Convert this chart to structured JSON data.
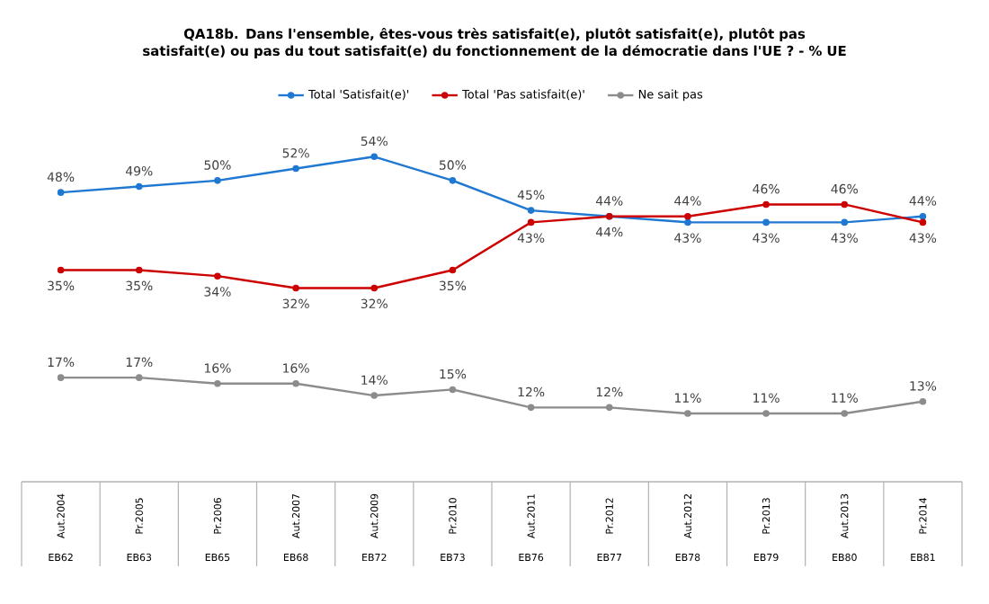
{
  "chart_data": {
    "type": "line",
    "title": "QA18b. Dans l'ensemble, êtes-vous très satisfait(e), plutôt satisfait(e), plutôt pas satisfait(e) ou pas du tout satisfait(e) du fonctionnement de la démocratie dans l'UE ? - % UE",
    "categories": [
      "Aut.2004",
      "Pr.2005",
      "Pr.2006",
      "Aut.2007",
      "Aut.2009",
      "Pr.2010",
      "Aut.2011",
      "Pr.2012",
      "Aut.2012",
      "Pr.2013",
      "Aut.2013",
      "Pr.2014"
    ],
    "annotations": [
      "EB62",
      "EB63",
      "EB65",
      "EB68",
      "EB72",
      "EB73",
      "EB76",
      "EB77",
      "EB78",
      "EB79",
      "EB80",
      "EB81"
    ],
    "series": [
      {
        "name": "Total 'Satisfait(e)'",
        "color": "#1f78d1",
        "values": [
          48,
          49,
          50,
          52,
          54,
          50,
          45,
          44,
          43,
          43,
          43,
          44
        ],
        "value_labels": [
          "48%",
          "49%",
          "50%",
          "52%",
          "54%",
          "50%",
          "45%",
          "44%",
          "43%",
          "43%",
          "43%",
          "44%"
        ]
      },
      {
        "name": "Total 'Pas satisfait(e)'",
        "color": "#cc0000",
        "values": [
          35,
          35,
          34,
          32,
          32,
          35,
          43,
          44,
          44,
          46,
          46,
          43
        ],
        "value_labels": [
          "35%",
          "35%",
          "34%",
          "32%",
          "32%",
          "35%",
          "43%",
          "44%",
          "44%",
          "46%",
          "46%",
          "43%"
        ]
      },
      {
        "name": "Ne sait pas",
        "color": "#8c8c8c",
        "values": [
          17,
          17,
          16,
          16,
          14,
          15,
          12,
          12,
          11,
          11,
          11,
          13
        ],
        "value_labels": [
          "17%",
          "17%",
          "16%",
          "16%",
          "14%",
          "15%",
          "12%",
          "12%",
          "11%",
          "11%",
          "11%",
          "13%"
        ]
      }
    ],
    "legend": "top",
    "marker": "circle",
    "line_style": "solid"
  }
}
